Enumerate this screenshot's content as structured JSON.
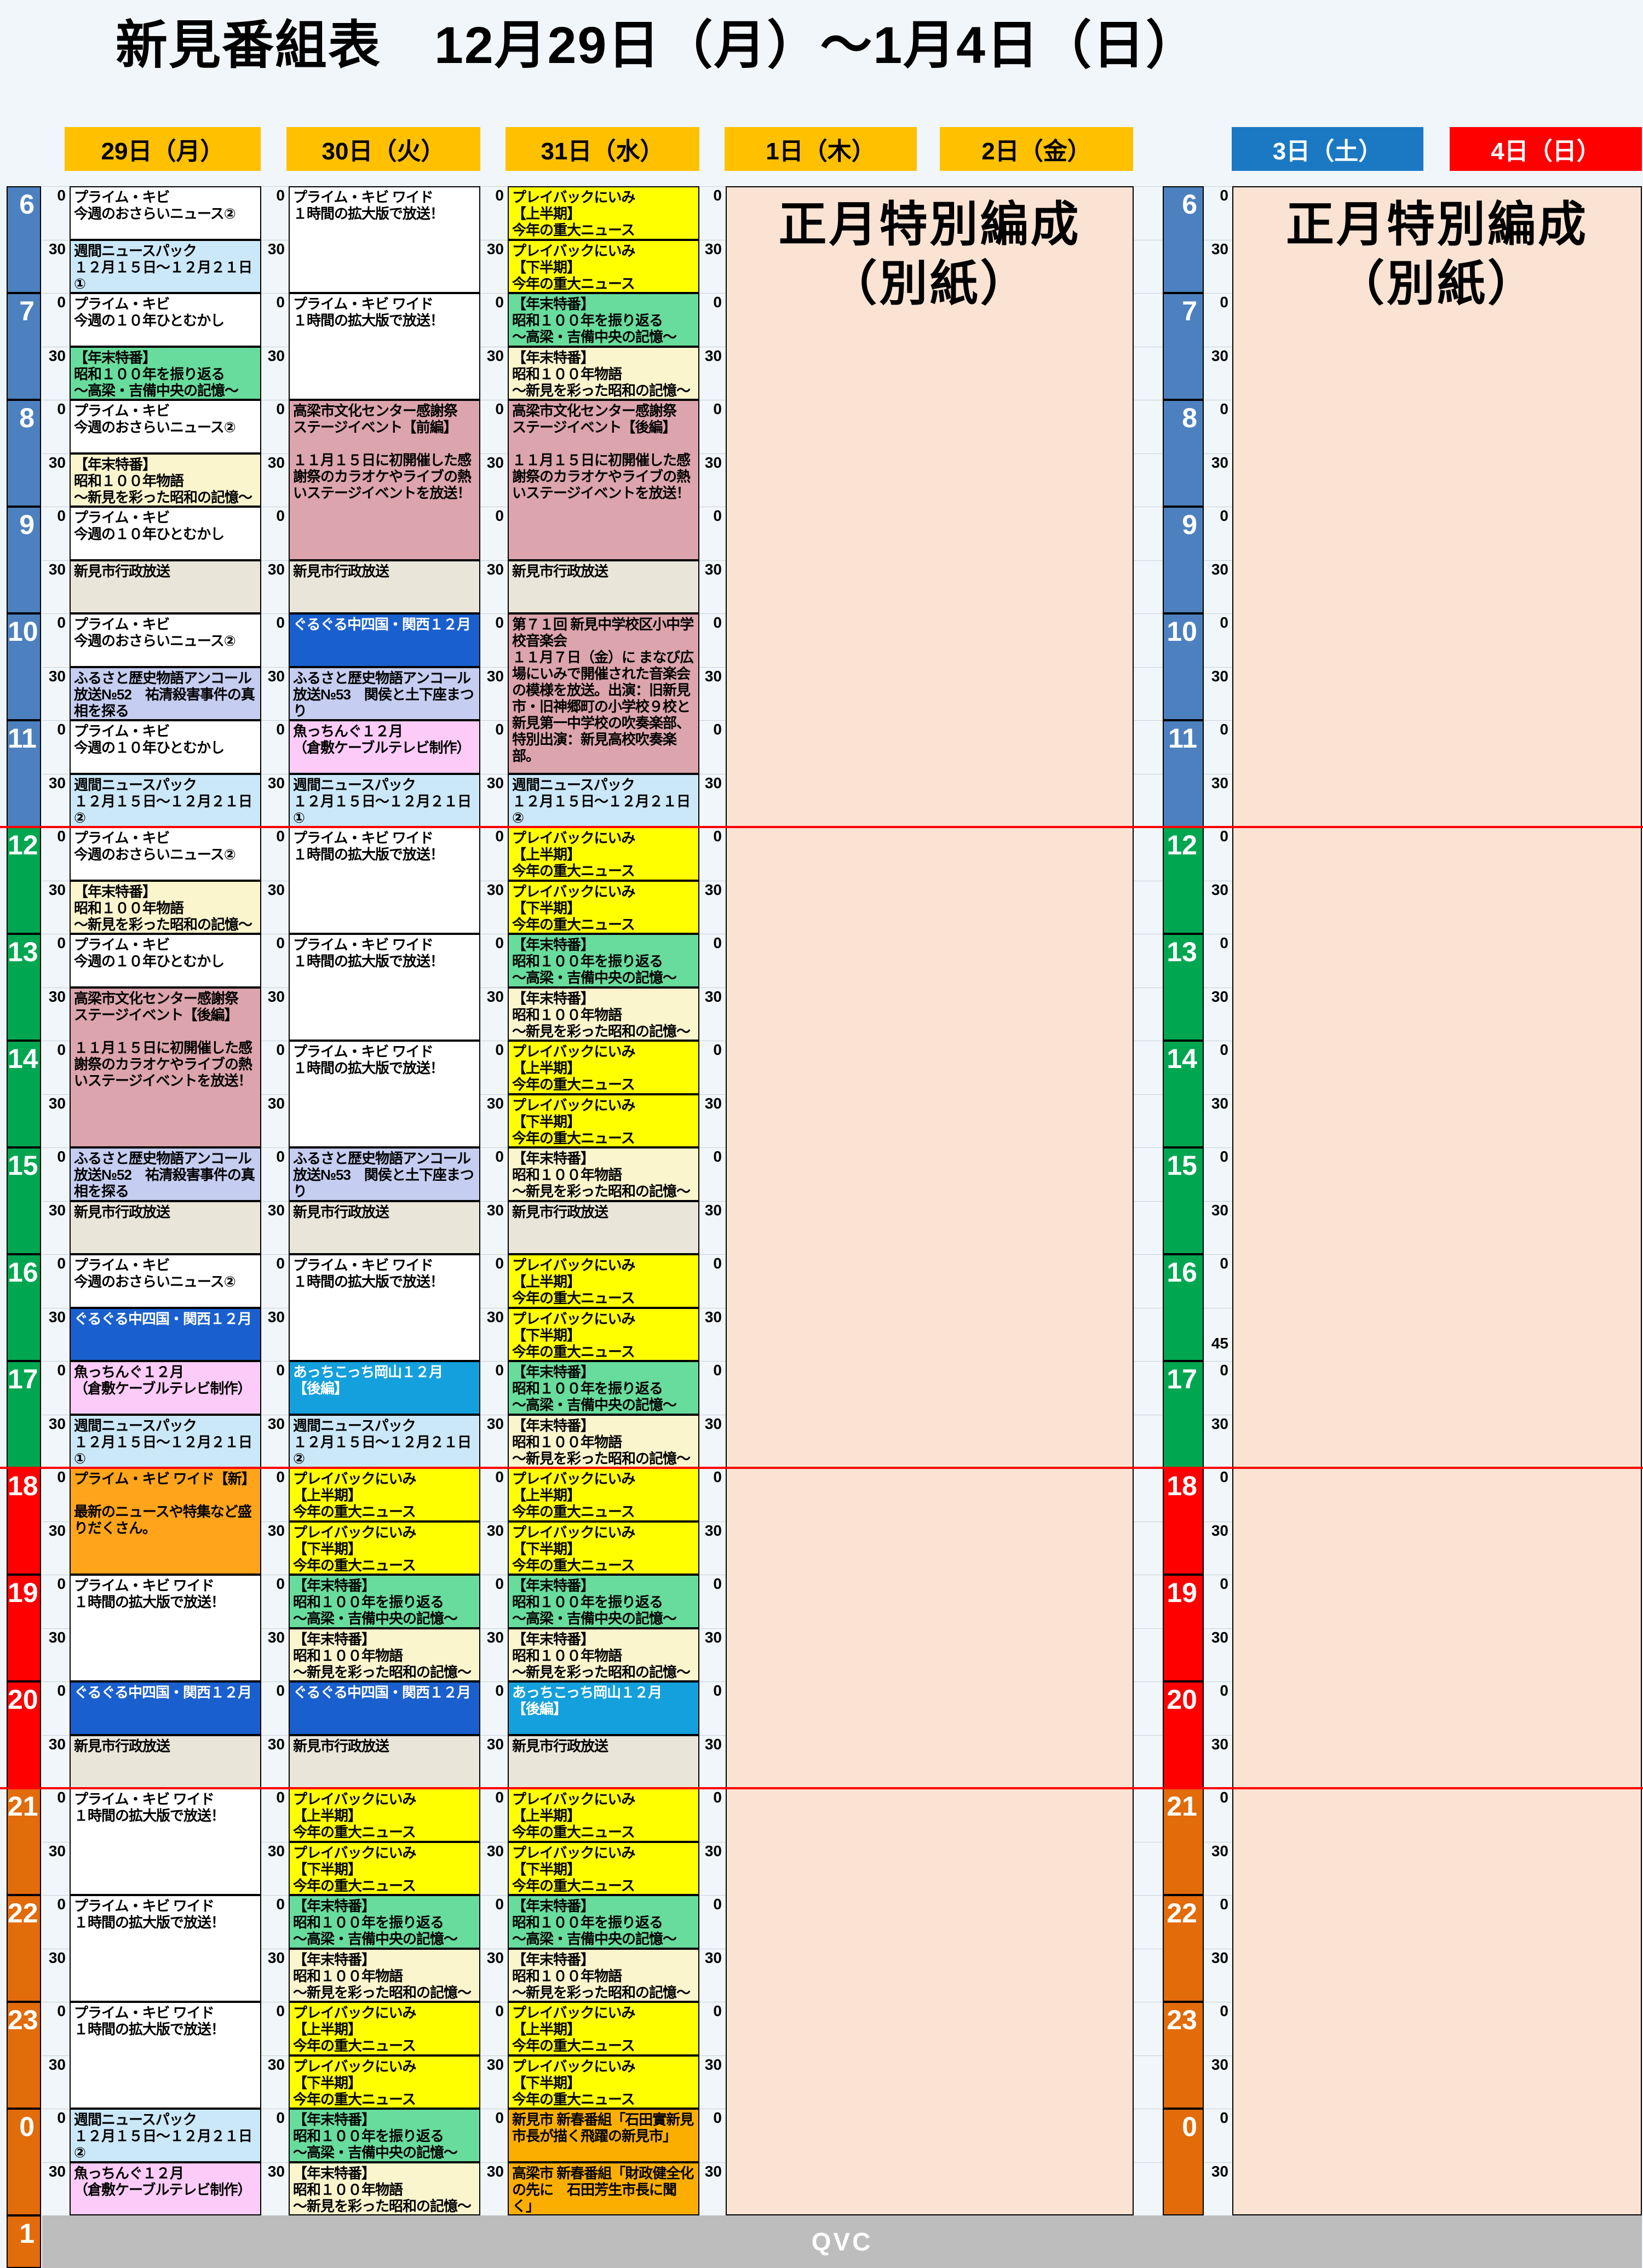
{
  "title": "新見番組表　12月29日（月）～1月4日（日）",
  "footer": {
    "channel": "QVC"
  },
  "special": {
    "lines": [
      "正月特別編成",
      "（別紙）"
    ]
  },
  "headers": [
    {
      "label": "29日（月）",
      "style": "weekday"
    },
    {
      "label": "30日（火）",
      "style": "weekday"
    },
    {
      "label": "31日（水）",
      "style": "weekday"
    },
    {
      "label": "1日（木）",
      "style": "weekday"
    },
    {
      "label": "2日（金）",
      "style": "weekday"
    },
    {
      "label": "3日（土）",
      "style": "saturday"
    },
    {
      "label": "4日（日）",
      "style": "sunday"
    }
  ],
  "time_axis": {
    "hours": [
      "6",
      "7",
      "8",
      "9",
      "10",
      "11",
      "12",
      "13",
      "14",
      "15",
      "16",
      "17",
      "18",
      "19",
      "20",
      "21",
      "22",
      "23",
      "0"
    ],
    "stub_hour": "1",
    "minutes": [
      "0",
      "30"
    ],
    "right_strip_special": {
      "hour_index": 10,
      "labels": [
        [
          "0",
          0
        ],
        [
          "45",
          0.75
        ]
      ]
    }
  },
  "hour_groups": [
    {
      "from": 0,
      "to": 5,
      "color": "#4D80BE"
    },
    {
      "from": 6,
      "to": 11,
      "color": "#00A650"
    },
    {
      "from": 12,
      "to": 14,
      "color": "#FF0000"
    },
    {
      "from": 15,
      "to": 18,
      "color": "#E26B0A"
    }
  ],
  "stub_color": "#E26B0A",
  "palette": {
    "white": "#FFFFFF",
    "lblue": "#CBE8F9",
    "green": "#68DC9C",
    "cream": "#FBF5CD",
    "beige": "#E9E5D9",
    "lav": "#C5CDF0",
    "pink": "#DCA4AC",
    "bpink": "#FCCBF8",
    "blue": "#1A5FCE",
    "cyan": "#14A0DC",
    "yellow": "#FFFF00",
    "orange": "#FFA41B",
    "amber2": "#FBAE00"
  },
  "header_colors": {
    "weekday": "#FFC000",
    "saturday": "#1B79C3",
    "sunday": "#FF0000"
  },
  "misc_colors": {
    "peach": "#FAE3D3",
    "gray_bar": "#BDBDBD",
    "red_line": "#FF0000"
  },
  "red_line_slots": [
    12,
    24,
    30
  ],
  "defs": {
    "osarai": [
      "プライム・キビ",
      "今週のおさらいニュース②"
    ],
    "hitomukashi": [
      "プライム・キビ",
      "今週の１０年ひとむかし"
    ],
    "pack1": [
      "週間ニュースパック",
      "１２月１５日～１２月２１日①"
    ],
    "pack2": [
      "週間ニュースパック",
      "１２月１５日～１２月２１日②"
    ],
    "furikaeru": [
      "【年末特番】",
      "昭和１００年を振り返る",
      "～高梁・吉備中央の記憶～"
    ],
    "monogatari": [
      "【年末特番】",
      "昭和１００年物語",
      "～新見を彩った昭和の記憶～"
    ],
    "gyousei": [
      "新見市行政放送"
    ],
    "furusato52": [
      "ふるさと歴史物語アンコール",
      "放送№52　祐清殺害事件の真相を探る"
    ],
    "furusato53": [
      "ふるさと歴史物語アンコール",
      "放送№53　関侯と土下座まつり"
    ],
    "guruguru": [
      "ぐるぐる中四国・関西１２月"
    ],
    "uocching": [
      "魚っちんぐ１２月",
      "（倉敷ケーブルテレビ制作）"
    ],
    "wide": [
      "プライム・キビ ワイド",
      "１時間の拡大版で放送！"
    ],
    "wide_new": [
      "プライム・キビ ワイド【新】",
      "",
      "最新のニュースや特集など盛りだくさん。"
    ],
    "takahashi_kouhen": [
      "高梁市文化センター感謝祭",
      "ステージイベント【後編】",
      "",
      "１１月１５日に初開催した感謝祭のカラオケやライブの熱いステージイベントを放送！"
    ],
    "takahashi_zenpen": [
      "高梁市文化センター感謝祭",
      "ステージイベント【前編】",
      "",
      "１１月１５日に初開催した感謝祭のカラオケやライブの熱いステージイベントを放送！"
    ],
    "acchi": [
      "あっちこっち岡山１２月",
      "【後編】"
    ],
    "playback_kami": [
      "プレイバックにいみ",
      "【上半期】",
      "今年の重大ニュース"
    ],
    "playback_shimo": [
      "プレイバックにいみ",
      "【下半期】",
      "今年の重大ニュース"
    ],
    "ongakukai": [
      "第７１回 新見中学校区小中学校音楽会",
      "１１月７日（金）に まなび広場にいみで開催された音楽会の模様を放送。出演：旧新見市・旧神郷町の小学校９校と新見第一中学校の吹奏楽部、特別出演：新見高校吹奏楽部。"
    ],
    "shinshun_niimi": [
      "新見市 新春番組「石田實新見市長が描く飛躍の新見市」"
    ],
    "shinshun_takahashi": [
      "高梁市 新春番組「財政健全化の先に　石田芳生市長に聞く」"
    ]
  },
  "columns": [
    {
      "day": "29日（月）",
      "programs": [
        {
          "s": 0,
          "n": 1,
          "c": "white",
          "d": "osarai"
        },
        {
          "s": 1,
          "n": 1,
          "c": "lblue",
          "d": "pack1"
        },
        {
          "s": 2,
          "n": 1,
          "c": "white",
          "d": "hitomukashi"
        },
        {
          "s": 3,
          "n": 1,
          "c": "green",
          "d": "furikaeru"
        },
        {
          "s": 4,
          "n": 1,
          "c": "white",
          "d": "osarai"
        },
        {
          "s": 5,
          "n": 1,
          "c": "cream",
          "d": "monogatari"
        },
        {
          "s": 6,
          "n": 1,
          "c": "white",
          "d": "hitomukashi"
        },
        {
          "s": 7,
          "n": 1,
          "c": "beige",
          "d": "gyousei"
        },
        {
          "s": 8,
          "n": 1,
          "c": "white",
          "d": "osarai"
        },
        {
          "s": 9,
          "n": 1,
          "c": "lav",
          "d": "furusato52"
        },
        {
          "s": 10,
          "n": 1,
          "c": "white",
          "d": "hitomukashi"
        },
        {
          "s": 11,
          "n": 1,
          "c": "lblue",
          "d": "pack2"
        },
        {
          "s": 12,
          "n": 1,
          "c": "white",
          "d": "osarai"
        },
        {
          "s": 13,
          "n": 1,
          "c": "cream",
          "d": "monogatari"
        },
        {
          "s": 14,
          "n": 1,
          "c": "white",
          "d": "hitomukashi"
        },
        {
          "s": 15,
          "n": 3,
          "c": "pink",
          "d": "takahashi_kouhen"
        },
        {
          "s": 18,
          "n": 1,
          "c": "lav",
          "d": "furusato52"
        },
        {
          "s": 19,
          "n": 1,
          "c": "beige",
          "d": "gyousei"
        },
        {
          "s": 20,
          "n": 1,
          "c": "white",
          "d": "osarai"
        },
        {
          "s": 21,
          "n": 1,
          "c": "blue",
          "d": "guruguru"
        },
        {
          "s": 22,
          "n": 1,
          "c": "bpink",
          "d": "uocching"
        },
        {
          "s": 23,
          "n": 1,
          "c": "lblue",
          "d": "pack1"
        },
        {
          "s": 24,
          "n": 2,
          "c": "orange",
          "d": "wide_new"
        },
        {
          "s": 26,
          "n": 2,
          "c": "white",
          "d": "wide"
        },
        {
          "s": 28,
          "n": 1,
          "c": "blue",
          "d": "guruguru"
        },
        {
          "s": 29,
          "n": 1,
          "c": "beige",
          "d": "gyousei"
        },
        {
          "s": 30,
          "n": 2,
          "c": "white",
          "d": "wide"
        },
        {
          "s": 32,
          "n": 2,
          "c": "white",
          "d": "wide"
        },
        {
          "s": 34,
          "n": 2,
          "c": "white",
          "d": "wide"
        },
        {
          "s": 36,
          "n": 1,
          "c": "lblue",
          "d": "pack2"
        },
        {
          "s": 37,
          "n": 1,
          "c": "bpink",
          "d": "uocching"
        }
      ]
    },
    {
      "day": "30日（火）",
      "programs": [
        {
          "s": 0,
          "n": 2,
          "c": "white",
          "d": "wide"
        },
        {
          "s": 2,
          "n": 2,
          "c": "white",
          "d": "wide"
        },
        {
          "s": 4,
          "n": 3,
          "c": "pink",
          "d": "takahashi_zenpen"
        },
        {
          "s": 7,
          "n": 1,
          "c": "beige",
          "d": "gyousei"
        },
        {
          "s": 8,
          "n": 1,
          "c": "blue",
          "d": "guruguru"
        },
        {
          "s": 9,
          "n": 1,
          "c": "lav",
          "d": "furusato53"
        },
        {
          "s": 10,
          "n": 1,
          "c": "bpink",
          "d": "uocching"
        },
        {
          "s": 11,
          "n": 1,
          "c": "lblue",
          "d": "pack1"
        },
        {
          "s": 12,
          "n": 2,
          "c": "white",
          "d": "wide"
        },
        {
          "s": 14,
          "n": 2,
          "c": "white",
          "d": "wide"
        },
        {
          "s": 16,
          "n": 2,
          "c": "white",
          "d": "wide"
        },
        {
          "s": 18,
          "n": 1,
          "c": "lav",
          "d": "furusato53"
        },
        {
          "s": 19,
          "n": 1,
          "c": "beige",
          "d": "gyousei"
        },
        {
          "s": 20,
          "n": 2,
          "c": "white",
          "d": "wide"
        },
        {
          "s": 22,
          "n": 1,
          "c": "cyan",
          "d": "acchi"
        },
        {
          "s": 23,
          "n": 1,
          "c": "lblue",
          "d": "pack2"
        },
        {
          "s": 24,
          "n": 1,
          "c": "yellow",
          "d": "playback_kami"
        },
        {
          "s": 25,
          "n": 1,
          "c": "yellow",
          "d": "playback_shimo"
        },
        {
          "s": 26,
          "n": 1,
          "c": "green",
          "d": "furikaeru"
        },
        {
          "s": 27,
          "n": 1,
          "c": "cream",
          "d": "monogatari"
        },
        {
          "s": 28,
          "n": 1,
          "c": "blue",
          "d": "guruguru"
        },
        {
          "s": 29,
          "n": 1,
          "c": "beige",
          "d": "gyousei"
        },
        {
          "s": 30,
          "n": 1,
          "c": "yellow",
          "d": "playback_kami"
        },
        {
          "s": 31,
          "n": 1,
          "c": "yellow",
          "d": "playback_shimo"
        },
        {
          "s": 32,
          "n": 1,
          "c": "green",
          "d": "furikaeru"
        },
        {
          "s": 33,
          "n": 1,
          "c": "cream",
          "d": "monogatari"
        },
        {
          "s": 34,
          "n": 1,
          "c": "yellow",
          "d": "playback_kami"
        },
        {
          "s": 35,
          "n": 1,
          "c": "yellow",
          "d": "playback_shimo"
        },
        {
          "s": 36,
          "n": 1,
          "c": "green",
          "d": "furikaeru"
        },
        {
          "s": 37,
          "n": 1,
          "c": "cream",
          "d": "monogatari"
        }
      ]
    },
    {
      "day": "31日（水）",
      "programs": [
        {
          "s": 0,
          "n": 1,
          "c": "yellow",
          "d": "playback_kami"
        },
        {
          "s": 1,
          "n": 1,
          "c": "yellow",
          "d": "playback_shimo"
        },
        {
          "s": 2,
          "n": 1,
          "c": "green",
          "d": "furikaeru"
        },
        {
          "s": 3,
          "n": 1,
          "c": "cream",
          "d": "monogatari"
        },
        {
          "s": 4,
          "n": 3,
          "c": "pink",
          "d": "takahashi_kouhen"
        },
        {
          "s": 7,
          "n": 1,
          "c": "beige",
          "d": "gyousei"
        },
        {
          "s": 8,
          "n": 3,
          "c": "pink",
          "d": "ongakukai"
        },
        {
          "s": 11,
          "n": 1,
          "c": "lblue",
          "d": "pack2"
        },
        {
          "s": 12,
          "n": 1,
          "c": "yellow",
          "d": "playback_kami"
        },
        {
          "s": 13,
          "n": 1,
          "c": "yellow",
          "d": "playback_shimo"
        },
        {
          "s": 14,
          "n": 1,
          "c": "green",
          "d": "furikaeru"
        },
        {
          "s": 15,
          "n": 1,
          "c": "cream",
          "d": "monogatari"
        },
        {
          "s": 16,
          "n": 1,
          "c": "yellow",
          "d": "playback_kami"
        },
        {
          "s": 17,
          "n": 1,
          "c": "yellow",
          "d": "playback_shimo"
        },
        {
          "s": 18,
          "n": 1,
          "c": "cream",
          "d": "monogatari"
        },
        {
          "s": 19,
          "n": 1,
          "c": "beige",
          "d": "gyousei"
        },
        {
          "s": 20,
          "n": 1,
          "c": "yellow",
          "d": "playback_kami"
        },
        {
          "s": 21,
          "n": 1,
          "c": "yellow",
          "d": "playback_shimo"
        },
        {
          "s": 22,
          "n": 1,
          "c": "green",
          "d": "furikaeru"
        },
        {
          "s": 23,
          "n": 1,
          "c": "cream",
          "d": "monogatari"
        },
        {
          "s": 24,
          "n": 1,
          "c": "yellow",
          "d": "playback_kami"
        },
        {
          "s": 25,
          "n": 1,
          "c": "yellow",
          "d": "playback_shimo"
        },
        {
          "s": 26,
          "n": 1,
          "c": "green",
          "d": "furikaeru"
        },
        {
          "s": 27,
          "n": 1,
          "c": "cream",
          "d": "monogatari"
        },
        {
          "s": 28,
          "n": 1,
          "c": "cyan",
          "d": "acchi"
        },
        {
          "s": 29,
          "n": 1,
          "c": "beige",
          "d": "gyousei"
        },
        {
          "s": 30,
          "n": 1,
          "c": "yellow",
          "d": "playback_kami"
        },
        {
          "s": 31,
          "n": 1,
          "c": "yellow",
          "d": "playback_shimo"
        },
        {
          "s": 32,
          "n": 1,
          "c": "green",
          "d": "furikaeru"
        },
        {
          "s": 33,
          "n": 1,
          "c": "cream",
          "d": "monogatari"
        },
        {
          "s": 34,
          "n": 1,
          "c": "yellow",
          "d": "playback_kami"
        },
        {
          "s": 35,
          "n": 1,
          "c": "yellow",
          "d": "playback_shimo"
        },
        {
          "s": 36,
          "n": 1,
          "c": "amber2",
          "d": "shinshun_niimi"
        },
        {
          "s": 37,
          "n": 1,
          "c": "amber2",
          "d": "shinshun_takahashi"
        }
      ]
    }
  ]
}
